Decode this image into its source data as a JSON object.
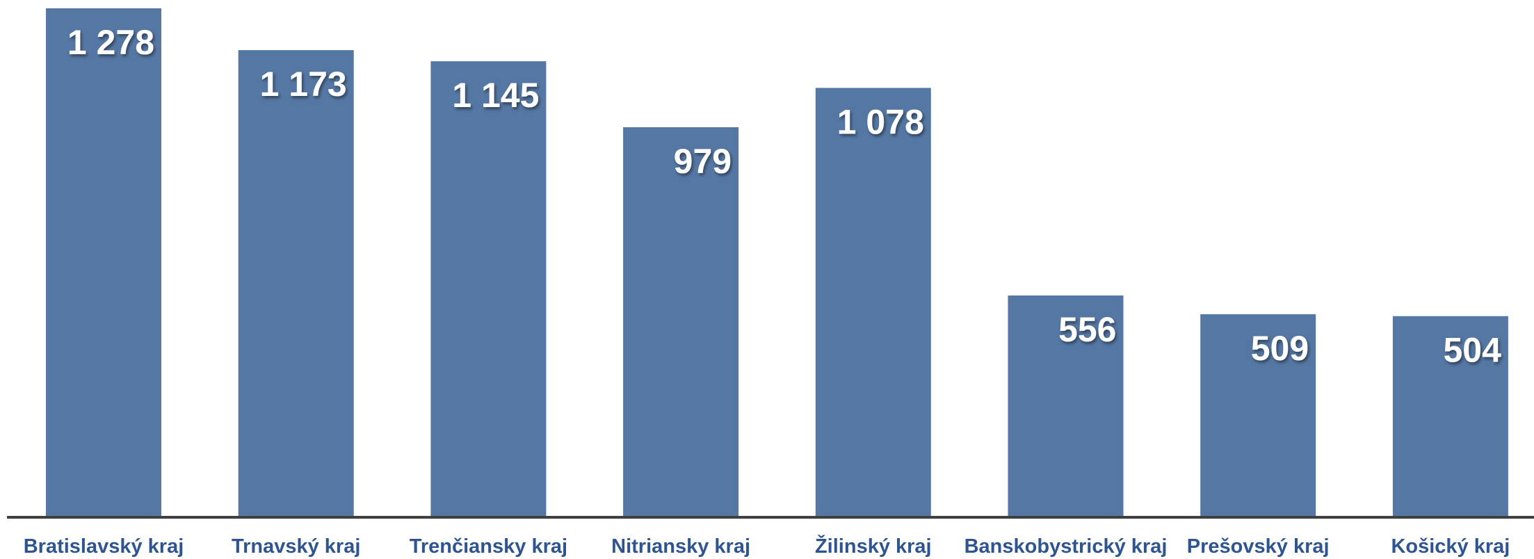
{
  "chart_data": {
    "type": "bar",
    "title": "",
    "xlabel": "",
    "ylabel": "",
    "categories": [
      "Bratislavský kraj",
      "Trnavský kraj",
      "Trenčiansky kraj",
      "Nitriansky kraj",
      "Žilinský kraj",
      "Banskobystrický kraj",
      "Prešovský kraj",
      "Košický kraj"
    ],
    "values": [
      1278,
      1173,
      1145,
      979,
      1078,
      556,
      509,
      504
    ],
    "value_labels": [
      "1 278",
      "1 173",
      "1 145",
      "979",
      "1 078",
      "556",
      "509",
      "504"
    ],
    "ylim": [
      0,
      1300
    ],
    "grid": false,
    "legend": "none",
    "colors": {
      "bar": "#5577a3",
      "value_text": "#ffffff",
      "category_text": "#2f5591",
      "axis": "#404040"
    }
  }
}
